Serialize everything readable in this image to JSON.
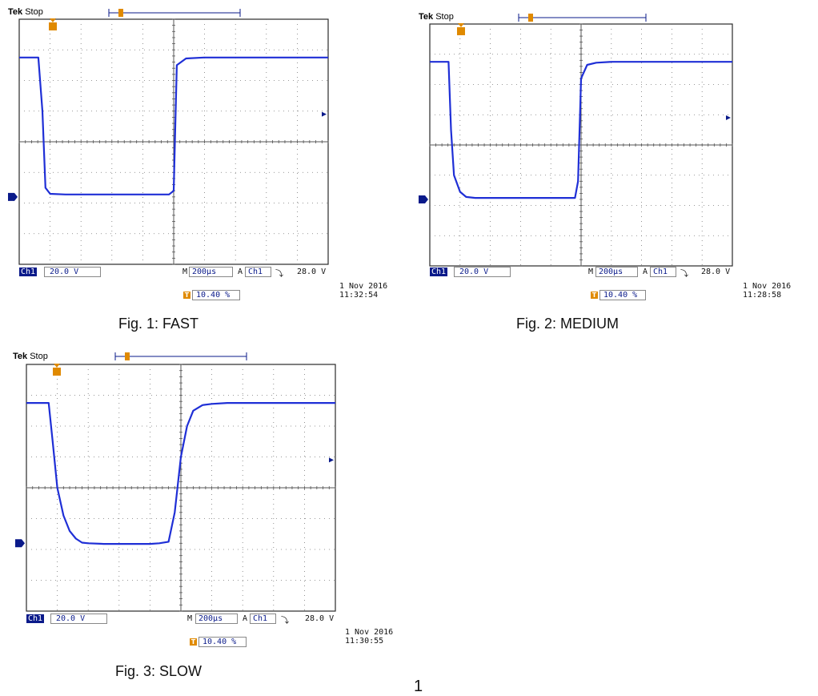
{
  "chart_data": [
    {
      "type": "line",
      "header": {
        "brand": "Tek",
        "state": "Stop"
      },
      "trace_color": "#1f2fd6",
      "x": [
        0,
        0.62,
        0.75,
        0.85,
        1.0,
        1.5,
        2.0,
        2.5,
        3.0,
        3.5,
        4.0,
        4.5,
        4.85,
        5.0,
        5.1,
        5.4,
        6.0,
        7.0,
        8.0,
        9.0,
        10.0
      ],
      "y": [
        2.75,
        2.75,
        1.0,
        -1.5,
        -1.7,
        -1.72,
        -1.72,
        -1.72,
        -1.72,
        -1.72,
        -1.72,
        -1.72,
        -1.72,
        -1.6,
        2.5,
        2.72,
        2.75,
        2.75,
        2.75,
        2.75,
        2.75
      ],
      "xlim": [
        0,
        10
      ],
      "ylim": [
        -4,
        4
      ],
      "grid": true,
      "footer": {
        "channel": "Ch1",
        "volts_div": "20.0 V",
        "m_label": "M",
        "time_div": "200µs",
        "trig_label": "A",
        "trig_ch": "Ch1",
        "trig_slope": "⤵",
        "trig_level": "28.0 V",
        "pos": "10.40 %",
        "date": "1 Nov 2016",
        "time": "11:32:54"
      },
      "caption": "Fig. 1: FAST"
    },
    {
      "type": "line",
      "header": {
        "brand": "Tek",
        "state": "Stop"
      },
      "trace_color": "#1f2fd6",
      "x": [
        0,
        0.62,
        0.7,
        0.8,
        1.0,
        1.2,
        1.5,
        2.0,
        3.0,
        4.0,
        4.8,
        4.9,
        5.0,
        5.2,
        5.5,
        6.0,
        7.0,
        8.0,
        9.0,
        10.0
      ],
      "y": [
        2.75,
        2.75,
        0.5,
        -1.0,
        -1.55,
        -1.72,
        -1.75,
        -1.75,
        -1.75,
        -1.75,
        -1.75,
        -1.2,
        2.2,
        2.65,
        2.72,
        2.75,
        2.75,
        2.75,
        2.75,
        2.75
      ],
      "xlim": [
        0,
        10
      ],
      "ylim": [
        -4,
        4
      ],
      "grid": true,
      "footer": {
        "channel": "Ch1",
        "volts_div": "20.0 V",
        "m_label": "M",
        "time_div": "200µs",
        "trig_label": "A",
        "trig_ch": "Ch1",
        "trig_slope": "⤵",
        "trig_level": "28.0 V",
        "pos": "10.40 %",
        "date": "1 Nov 2016",
        "time": "11:28:58"
      },
      "caption": "Fig. 2: MEDIUM"
    },
    {
      "type": "line",
      "header": {
        "brand": "Tek",
        "state": "Stop"
      },
      "trace_color": "#1f2fd6",
      "x": [
        0,
        0.72,
        0.85,
        1.0,
        1.2,
        1.4,
        1.6,
        1.8,
        2.0,
        2.5,
        3.0,
        3.5,
        4.0,
        4.3,
        4.6,
        4.8,
        5.0,
        5.2,
        5.4,
        5.7,
        6.0,
        6.5,
        7.0,
        8.0,
        10.0
      ],
      "y": [
        2.75,
        2.75,
        1.5,
        0.0,
        -0.9,
        -1.4,
        -1.65,
        -1.78,
        -1.8,
        -1.82,
        -1.82,
        -1.82,
        -1.82,
        -1.8,
        -1.75,
        -0.8,
        1.0,
        2.0,
        2.5,
        2.68,
        2.72,
        2.75,
        2.75,
        2.75,
        2.75
      ],
      "xlim": [
        0,
        10
      ],
      "ylim": [
        -4,
        4
      ],
      "grid": true,
      "footer": {
        "channel": "Ch1",
        "volts_div": "20.0 V",
        "m_label": "M",
        "time_div": "200µs",
        "trig_label": "A",
        "trig_ch": "Ch1",
        "trig_slope": "⤵",
        "trig_level": "28.0 V",
        "pos": "10.40 %",
        "date": "1 Nov 2016",
        "time": "11:30:55"
      },
      "caption": "Fig. 3: SLOW"
    }
  ],
  "page_number": "1"
}
